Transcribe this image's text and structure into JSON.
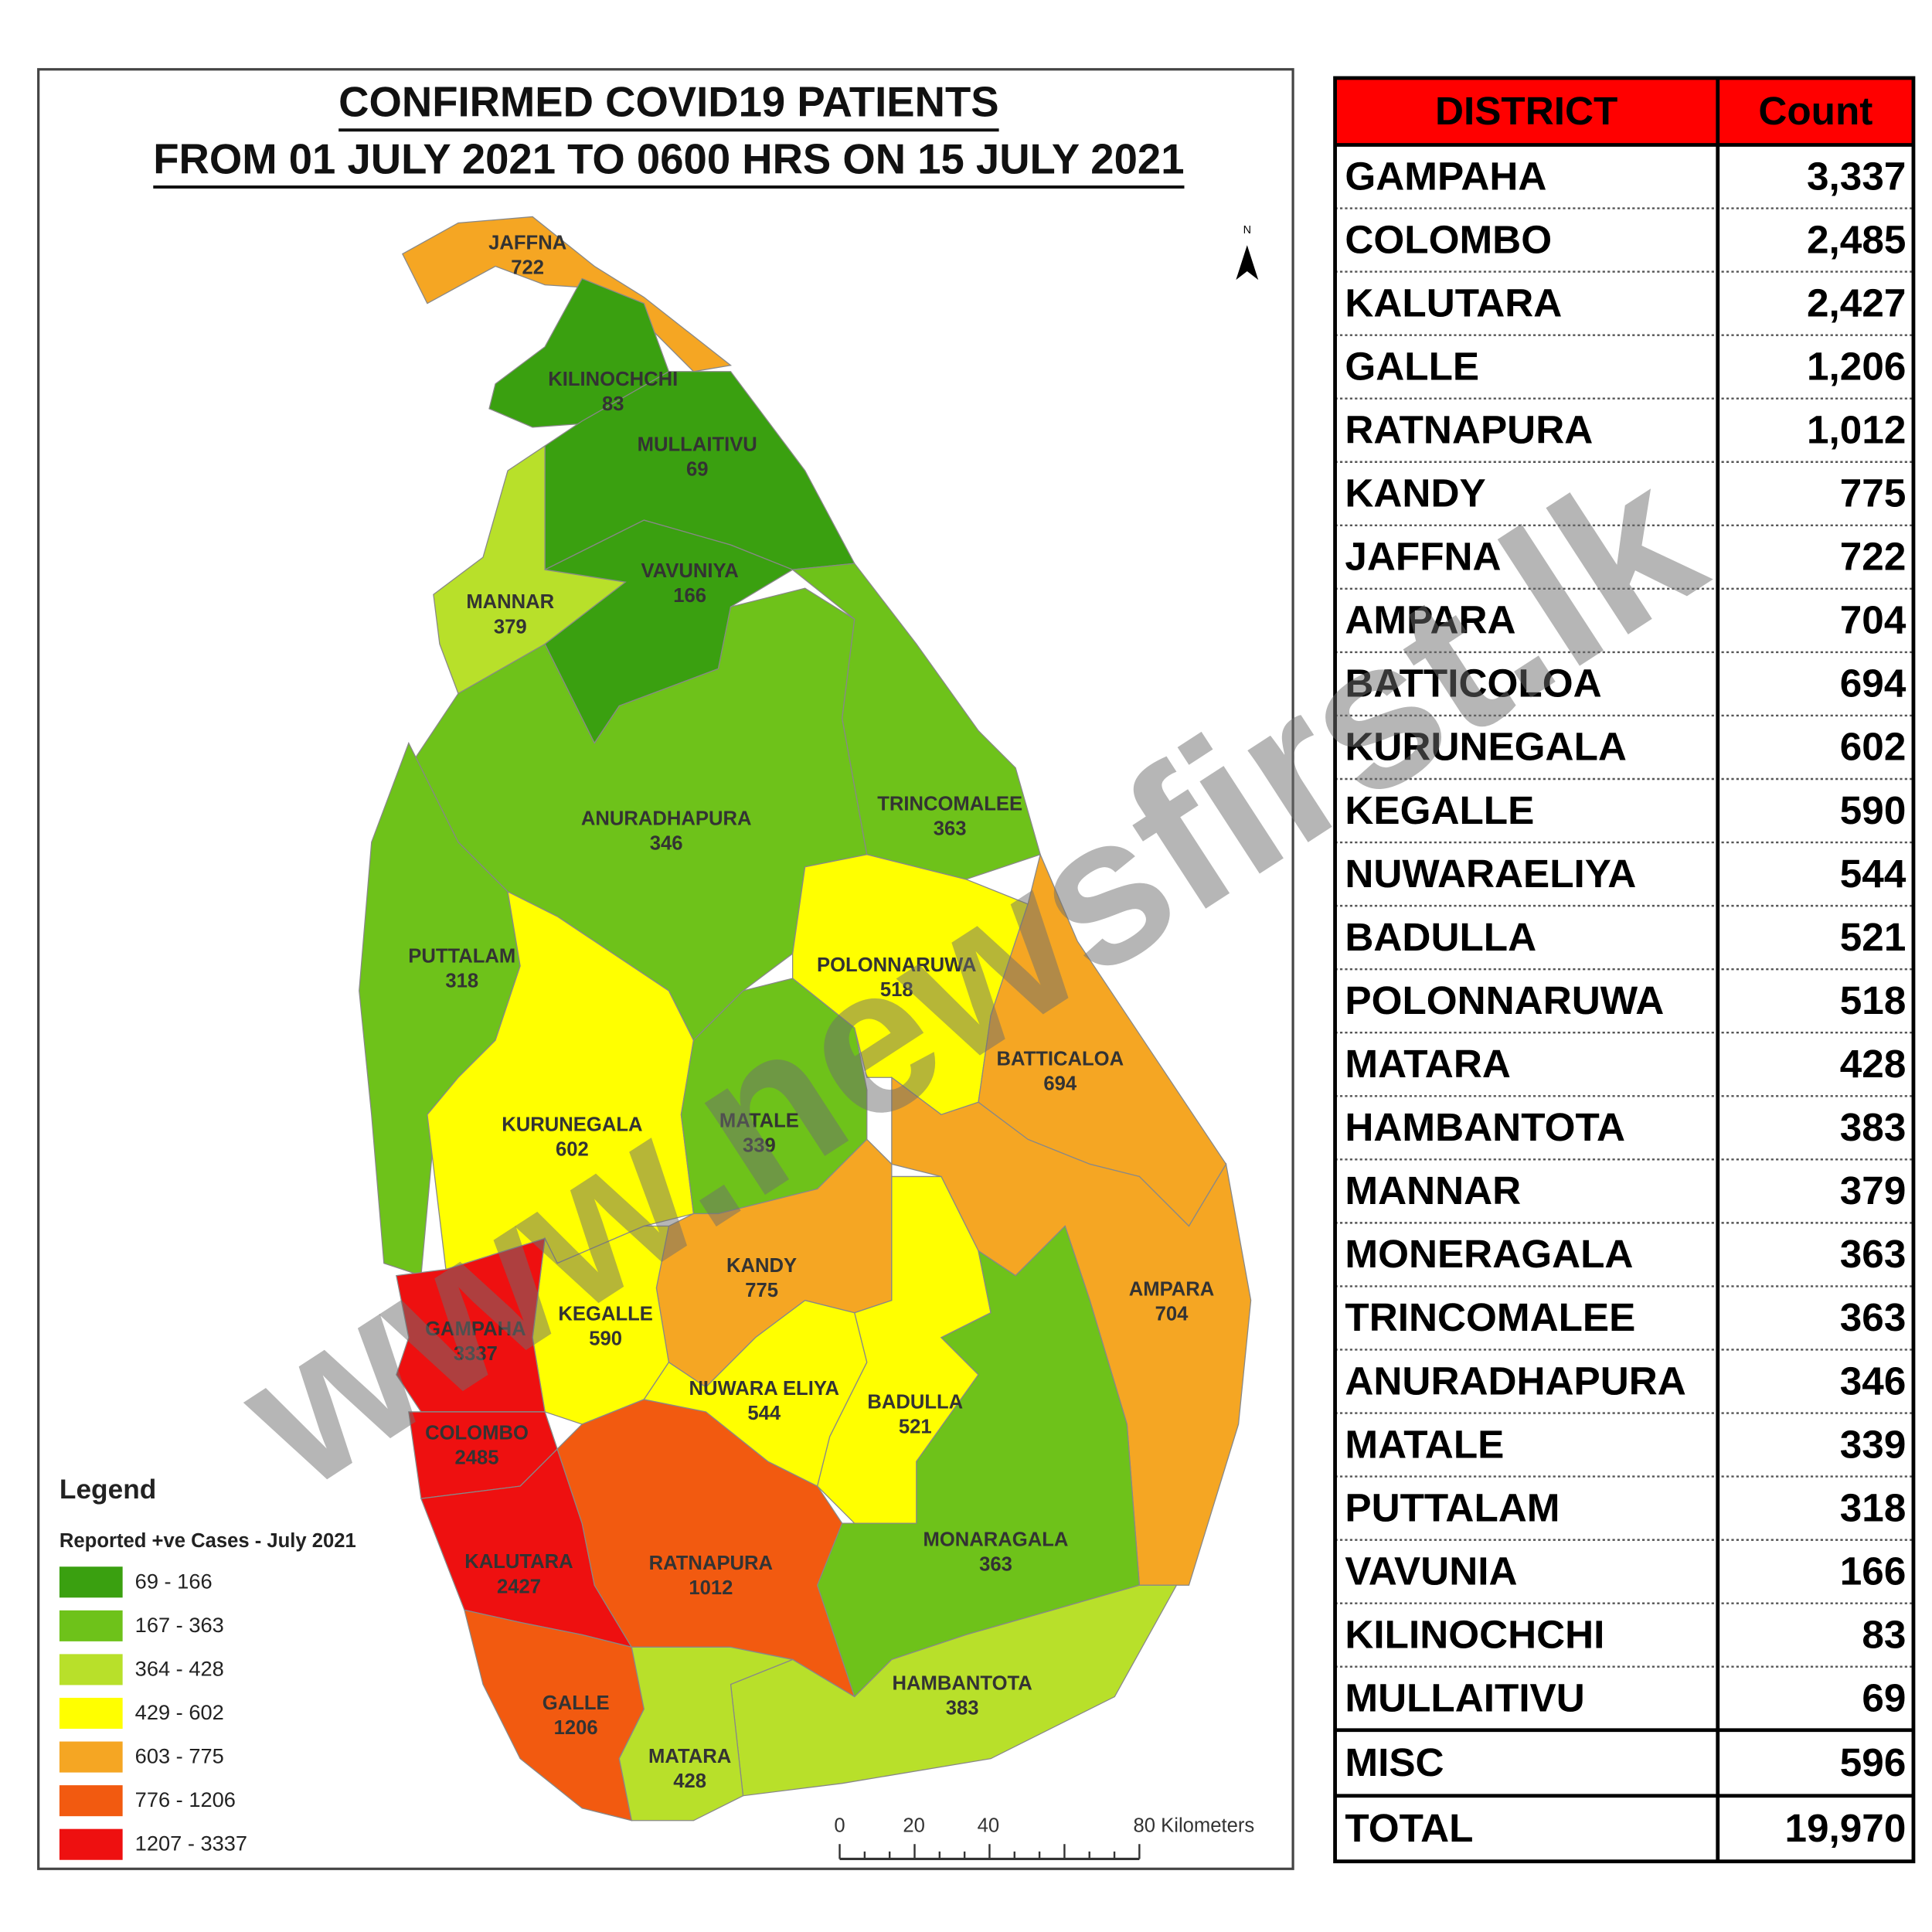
{
  "title_lines": [
    "CONFIRMED COVID19 PATIENTS",
    "FROM 01 JULY 2021 TO 0600 HRS ON 15 JULY  2021"
  ],
  "north": "N",
  "map": {
    "districts": [
      {
        "name": "JAFFNA",
        "count": 722,
        "color": "#f5a623"
      },
      {
        "name": "KILINOCHCHI",
        "count": 83,
        "color": "#3aa010"
      },
      {
        "name": "MULLAITIVU",
        "count": 69,
        "color": "#3aa010"
      },
      {
        "name": "VAVUNIYA",
        "count": 166,
        "color": "#3aa010"
      },
      {
        "name": "MANNAR",
        "count": 379,
        "color": "#b8e02a"
      },
      {
        "name": "ANURADHAPURA",
        "count": 346,
        "color": "#6ec21a"
      },
      {
        "name": "TRINCOMALEE",
        "count": 363,
        "color": "#6ec21a"
      },
      {
        "name": "PUTTALAM",
        "count": 318,
        "color": "#6ec21a"
      },
      {
        "name": "KURUNEGALA",
        "count": 602,
        "color": "#ffff00"
      },
      {
        "name": "POLONNARUWA",
        "count": 518,
        "color": "#ffff00"
      },
      {
        "name": "MATALE",
        "count": 339,
        "color": "#6ec21a"
      },
      {
        "name": "BATTICALOA",
        "count": 694,
        "color": "#f5a623"
      },
      {
        "name": "AMPARA",
        "count": 704,
        "color": "#f5a623"
      },
      {
        "name": "KANDY",
        "count": 775,
        "color": "#f5a623"
      },
      {
        "name": "KEGALLE",
        "count": 590,
        "color": "#ffff00"
      },
      {
        "name": "GAMPAHA",
        "count": 3337,
        "color": "#ee1010"
      },
      {
        "name": "COLOMBO",
        "count": 2485,
        "color": "#ee1010"
      },
      {
        "name": "KALUTARA",
        "count": 2427,
        "color": "#ee1010"
      },
      {
        "name": "RATNAPURA",
        "count": 1012,
        "color": "#f25a10"
      },
      {
        "name": "NUWARA ELIYA",
        "count": 544,
        "color": "#ffff00"
      },
      {
        "name": "BADULLA",
        "count": 521,
        "color": "#ffff00"
      },
      {
        "name": "MONARAGALA",
        "count": 363,
        "color": "#6ec21a"
      },
      {
        "name": "HAMBANTOTA",
        "count": 383,
        "color": "#b8e02a"
      },
      {
        "name": "GALLE",
        "count": 1206,
        "color": "#f25a10"
      },
      {
        "name": "MATARA",
        "count": 428,
        "color": "#b8e02a"
      }
    ]
  },
  "legend": {
    "title": "Legend",
    "subtitle": "Reported +ve Cases - July 2021",
    "items": [
      {
        "label": "69 - 166",
        "color": "#3aa010"
      },
      {
        "label": "167 - 363",
        "color": "#6ec21a"
      },
      {
        "label": "364 - 428",
        "color": "#b8e02a"
      },
      {
        "label": "429 - 602",
        "color": "#ffff00"
      },
      {
        "label": "603 - 775",
        "color": "#f5a623"
      },
      {
        "label": "776 - 1206",
        "color": "#f25a10"
      },
      {
        "label": "1207 - 3337",
        "color": "#ee1010"
      }
    ]
  },
  "scale_bar": {
    "labels": [
      "0",
      "20",
      "40",
      "80 Kilometers"
    ]
  },
  "watermark": "www.newsfirst.lk",
  "table": {
    "header": [
      "DISTRICT",
      "Count"
    ],
    "rows": [
      [
        "GAMPAHA",
        "3,337"
      ],
      [
        "COLOMBO",
        "2,485"
      ],
      [
        "KALUTARA",
        "2,427"
      ],
      [
        "GALLE",
        "1,206"
      ],
      [
        "RATNAPURA",
        "1,012"
      ],
      [
        "KANDY",
        "775"
      ],
      [
        "JAFFNA",
        "722"
      ],
      [
        "AMPARA",
        "704"
      ],
      [
        "BATTICOLOA",
        "694"
      ],
      [
        "KURUNEGALA",
        "602"
      ],
      [
        "KEGALLE",
        "590"
      ],
      [
        "NUWARAELIYA",
        "544"
      ],
      [
        "BADULLA",
        "521"
      ],
      [
        "POLONNARUWA",
        "518"
      ],
      [
        "MATARA",
        "428"
      ],
      [
        "HAMBANTOTA",
        "383"
      ],
      [
        "MANNAR",
        "379"
      ],
      [
        "MONERAGALA",
        "363"
      ],
      [
        "TRINCOMALEE",
        "363"
      ],
      [
        "ANURADHAPURA",
        "346"
      ],
      [
        "MATALE",
        "339"
      ],
      [
        "PUTTALAM",
        "318"
      ],
      [
        "VAVUNIA",
        "166"
      ],
      [
        "KILINOCHCHI",
        "83"
      ],
      [
        "MULLAITIVU",
        "69"
      ]
    ],
    "footer_rows": [
      [
        "MISC",
        "596"
      ],
      [
        "TOTAL",
        "19,970"
      ]
    ]
  }
}
